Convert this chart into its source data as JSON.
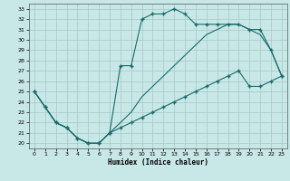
{
  "xlabel": "Humidex (Indice chaleur)",
  "xlim": [
    -0.5,
    23.5
  ],
  "ylim": [
    19.5,
    33.5
  ],
  "yticks": [
    20,
    21,
    22,
    23,
    24,
    25,
    26,
    27,
    28,
    29,
    30,
    31,
    32,
    33
  ],
  "xticks": [
    0,
    1,
    2,
    3,
    4,
    5,
    6,
    7,
    8,
    9,
    10,
    11,
    12,
    13,
    14,
    15,
    16,
    17,
    18,
    19,
    20,
    21,
    22,
    23
  ],
  "bg_color": "#c8e8e8",
  "grid_color": "#a8c8c8",
  "line_color": "#1a6b6b",
  "series": {
    "upper": [
      25,
      23.5,
      22,
      21.5,
      20.5,
      20,
      20,
      21,
      27.5,
      27.5,
      32,
      32.5,
      32.5,
      33,
      32.5,
      31.5,
      31.5,
      31.5,
      31.5,
      31.5,
      31,
      31,
      29,
      26.5
    ],
    "middle": [
      25,
      23.5,
      22,
      21.5,
      20.5,
      20,
      20,
      21,
      22,
      23,
      24.5,
      25.5,
      26.5,
      27.5,
      28.5,
      29.5,
      30.5,
      31,
      31.5,
      31.5,
      31,
      30.5,
      29,
      26.5
    ],
    "lower": [
      25,
      23.5,
      22,
      21.5,
      20.5,
      20,
      20,
      21,
      21.5,
      22,
      22.5,
      23,
      23.5,
      24,
      24.5,
      25,
      25.5,
      26,
      26.5,
      27,
      25.5,
      25.5,
      26,
      26.5
    ]
  }
}
